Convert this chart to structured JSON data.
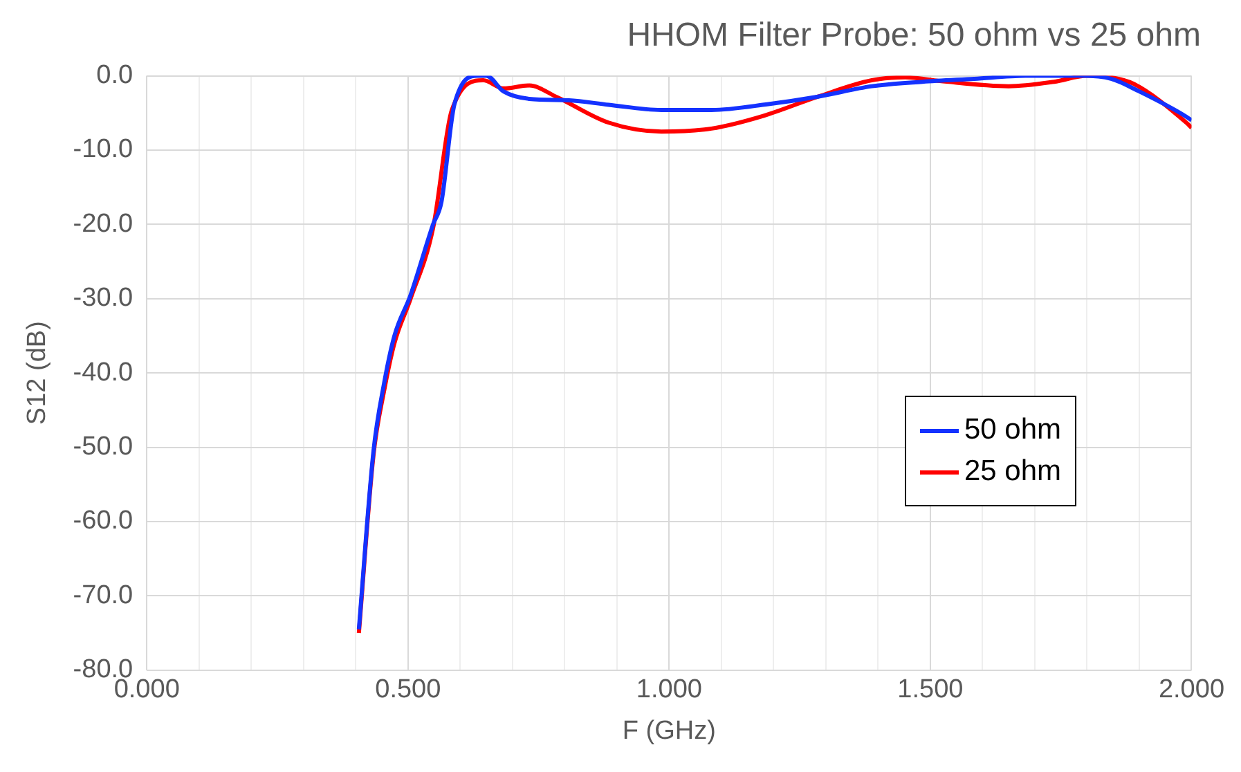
{
  "chart_data": {
    "type": "line",
    "title": "HHOM Filter Probe: 50 ohm vs 25 ohm",
    "xlabel": "F (GHz)",
    "ylabel": "S12 (dB)",
    "xlim": [
      0,
      2
    ],
    "ylim": [
      -80,
      0
    ],
    "xticks": [
      {
        "value": 0,
        "label": "0.000"
      },
      {
        "value": 0.1,
        "label": null
      },
      {
        "value": 0.2,
        "label": null
      },
      {
        "value": 0.3,
        "label": null
      },
      {
        "value": 0.4,
        "label": null
      },
      {
        "value": 0.5,
        "label": "0.500"
      },
      {
        "value": 0.6,
        "label": null
      },
      {
        "value": 0.7,
        "label": null
      },
      {
        "value": 0.8,
        "label": null
      },
      {
        "value": 0.9,
        "label": null
      },
      {
        "value": 1,
        "label": "1.000"
      },
      {
        "value": 1.1,
        "label": null
      },
      {
        "value": 1.2,
        "label": null
      },
      {
        "value": 1.3,
        "label": null
      },
      {
        "value": 1.4,
        "label": null
      },
      {
        "value": 1.5,
        "label": "1.500"
      },
      {
        "value": 1.6,
        "label": null
      },
      {
        "value": 1.7,
        "label": null
      },
      {
        "value": 1.8,
        "label": null
      },
      {
        "value": 1.9,
        "label": null
      },
      {
        "value": 2,
        "label": "2.000"
      }
    ],
    "yticks": [
      {
        "value": 0,
        "label": "0.0"
      },
      {
        "value": -10,
        "label": "-10.0"
      },
      {
        "value": -20,
        "label": "-20.0"
      },
      {
        "value": -30,
        "label": "-30.0"
      },
      {
        "value": -40,
        "label": "-40.0"
      },
      {
        "value": -50,
        "label": "-50.0"
      },
      {
        "value": -60,
        "label": "-60.0"
      },
      {
        "value": -70,
        "label": "-70.0"
      },
      {
        "value": -80,
        "label": "-80.0"
      }
    ],
    "grid": true,
    "legend": "right",
    "marker": "none",
    "line_style": "solid",
    "series": [
      {
        "name": "50 ohm",
        "color": "#1432ff",
        "x": [
          0.406,
          0.434,
          0.454,
          0.474,
          0.505,
          0.548,
          0.564,
          0.589,
          0.633,
          0.65,
          0.683,
          0.732,
          0.808,
          0.884,
          0.985,
          1.081,
          1.19,
          1.285,
          1.388,
          1.485,
          1.584,
          1.682,
          1.791,
          1.846,
          1.9,
          1.99,
          2.0
        ],
        "values": [
          -74.5,
          -50.5,
          -41.5,
          -35,
          -29.5,
          -20,
          -17,
          -3.8,
          0,
          0,
          -2.1,
          -3.1,
          -3.3,
          -3.9,
          -4.6,
          -4.6,
          -3.8,
          -2.8,
          -1.4,
          -0.8,
          -0.4,
          0,
          0,
          -0.4,
          -2.1,
          -5.5,
          -6
        ]
      },
      {
        "name": "25 ohm",
        "color": "#ff0000",
        "x": [
          0.406,
          0.434,
          0.454,
          0.474,
          0.505,
          0.548,
          0.584,
          0.644,
          0.683,
          0.732,
          0.786,
          0.884,
          0.985,
          1.081,
          1.18,
          1.285,
          1.388,
          1.452,
          1.518,
          1.65,
          1.737,
          1.8,
          1.846,
          1.89,
          1.99,
          2.0
        ],
        "values": [
          -75,
          -51,
          -42.5,
          -36,
          -30,
          -20.5,
          -4.6,
          -0.6,
          -1.7,
          -1.3,
          -2.9,
          -6.3,
          -7.5,
          -7.1,
          -5.4,
          -2.8,
          -0.6,
          -0.2,
          -0.7,
          -1.4,
          -0.8,
          0,
          -0.2,
          -1.1,
          -6.3,
          -7
        ]
      }
    ]
  }
}
